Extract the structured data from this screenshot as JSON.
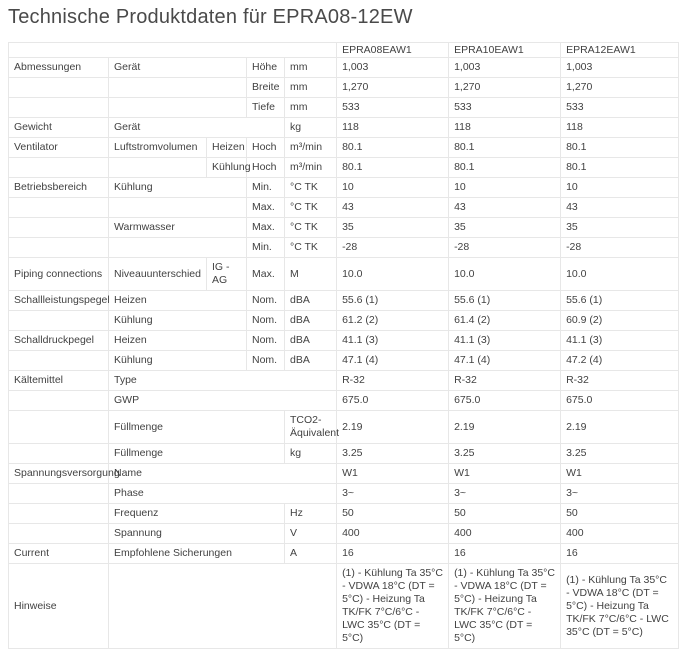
{
  "page": {
    "title": "Technische Produktdaten für EPRA08-12EW"
  },
  "colors": {
    "background": "#ffffff",
    "text": "#424242",
    "title_text": "#4a4a4a",
    "table_border": "#e7e7e7"
  },
  "table": {
    "products": [
      "EPRA08EAW1",
      "EPRA10EAW1",
      "EPRA12EAW1"
    ],
    "rows": [
      [
        "Abmessungen",
        "Gerät",
        "",
        "Höhe",
        "mm",
        "1,003",
        "1,003",
        "1,003"
      ],
      [
        "",
        "",
        "",
        "Breite",
        "mm",
        "1,270",
        "1,270",
        "1,270"
      ],
      [
        "",
        "",
        "",
        "Tiefe",
        "mm",
        "533",
        "533",
        "533"
      ],
      [
        "Gewicht",
        "Gerät",
        "",
        "",
        "kg",
        "118",
        "118",
        "118"
      ],
      [
        "Ventilator",
        "Luftstromvolumen",
        "Heizen",
        "Hoch",
        "m³/min",
        "80.1",
        "80.1",
        "80.1"
      ],
      [
        "",
        "",
        "Kühlung",
        "Hoch",
        "m³/min",
        "80.1",
        "80.1",
        "80.1"
      ],
      [
        "Betriebsbereich",
        "Kühlung",
        "",
        "Min.",
        "°C TK",
        "10",
        "10",
        "10"
      ],
      [
        "",
        "",
        "",
        "Max.",
        "°C TK",
        "43",
        "43",
        "43"
      ],
      [
        "",
        "Warmwasser",
        "",
        "Max.",
        "°C TK",
        "35",
        "35",
        "35"
      ],
      [
        "",
        "",
        "",
        "Min.",
        "°C TK",
        "-28",
        "-28",
        "-28"
      ],
      [
        "Piping connections",
        "Niveauunterschied",
        "IG - AG",
        "Max.",
        "M",
        "10.0",
        "10.0",
        "10.0"
      ],
      [
        "Schallleistungspegel",
        "Heizen",
        "",
        "Nom.",
        "dBA",
        "55.6 (1)",
        "55.6 (1)",
        "55.6 (1)"
      ],
      [
        "",
        "Kühlung",
        "",
        "Nom.",
        "dBA",
        "61.2 (2)",
        "61.4 (2)",
        "60.9 (2)"
      ],
      [
        "Schalldruckpegel",
        "Heizen",
        "",
        "Nom.",
        "dBA",
        "41.1 (3)",
        "41.1 (3)",
        "41.1 (3)"
      ],
      [
        "",
        "Kühlung",
        "",
        "Nom.",
        "dBA",
        "47.1 (4)",
        "47.1 (4)",
        "47.2 (4)"
      ],
      [
        "Kältemittel",
        "Type",
        "",
        "",
        "",
        "R-32",
        "R-32",
        "R-32"
      ],
      [
        "",
        "GWP",
        "",
        "",
        "",
        "675.0",
        "675.0",
        "675.0"
      ],
      [
        "",
        "Füllmenge",
        "",
        "",
        "TCO2-Äquivalent",
        "2.19",
        "2.19",
        "2.19"
      ],
      [
        "",
        "Füllmenge",
        "",
        "",
        "kg",
        "3.25",
        "3.25",
        "3.25"
      ],
      [
        "Spannungsversorgung",
        "Name",
        "",
        "",
        "",
        "W1",
        "W1",
        "W1"
      ],
      [
        "",
        "Phase",
        "",
        "",
        "",
        "3~",
        "3~",
        "3~"
      ],
      [
        "",
        "Frequenz",
        "",
        "",
        "Hz",
        "50",
        "50",
        "50"
      ],
      [
        "",
        "Spannung",
        "",
        "",
        "V",
        "400",
        "400",
        "400"
      ],
      [
        "Current",
        "Empfohlene Sicherungen",
        "",
        "",
        "A",
        "16",
        "16",
        "16"
      ],
      [
        "Hinweise",
        "",
        "",
        "",
        "",
        "(1) - Kühlung Ta 35°C - VDWA 18°C (DT = 5°C) - Heizung Ta TK/FK 7°C/6°C - LWC 35°C (DT = 5°C)",
        "(1) - Kühlung Ta 35°C - VDWA 18°C (DT = 5°C) - Heizung Ta TK/FK 7°C/6°C - LWC 35°C (DT = 5°C)",
        "(1) - Kühlung Ta 35°C - VDWA 18°C (DT = 5°C) - Heizung Ta TK/FK 7°C/6°C - LWC 35°C (DT = 5°C)"
      ]
    ]
  }
}
